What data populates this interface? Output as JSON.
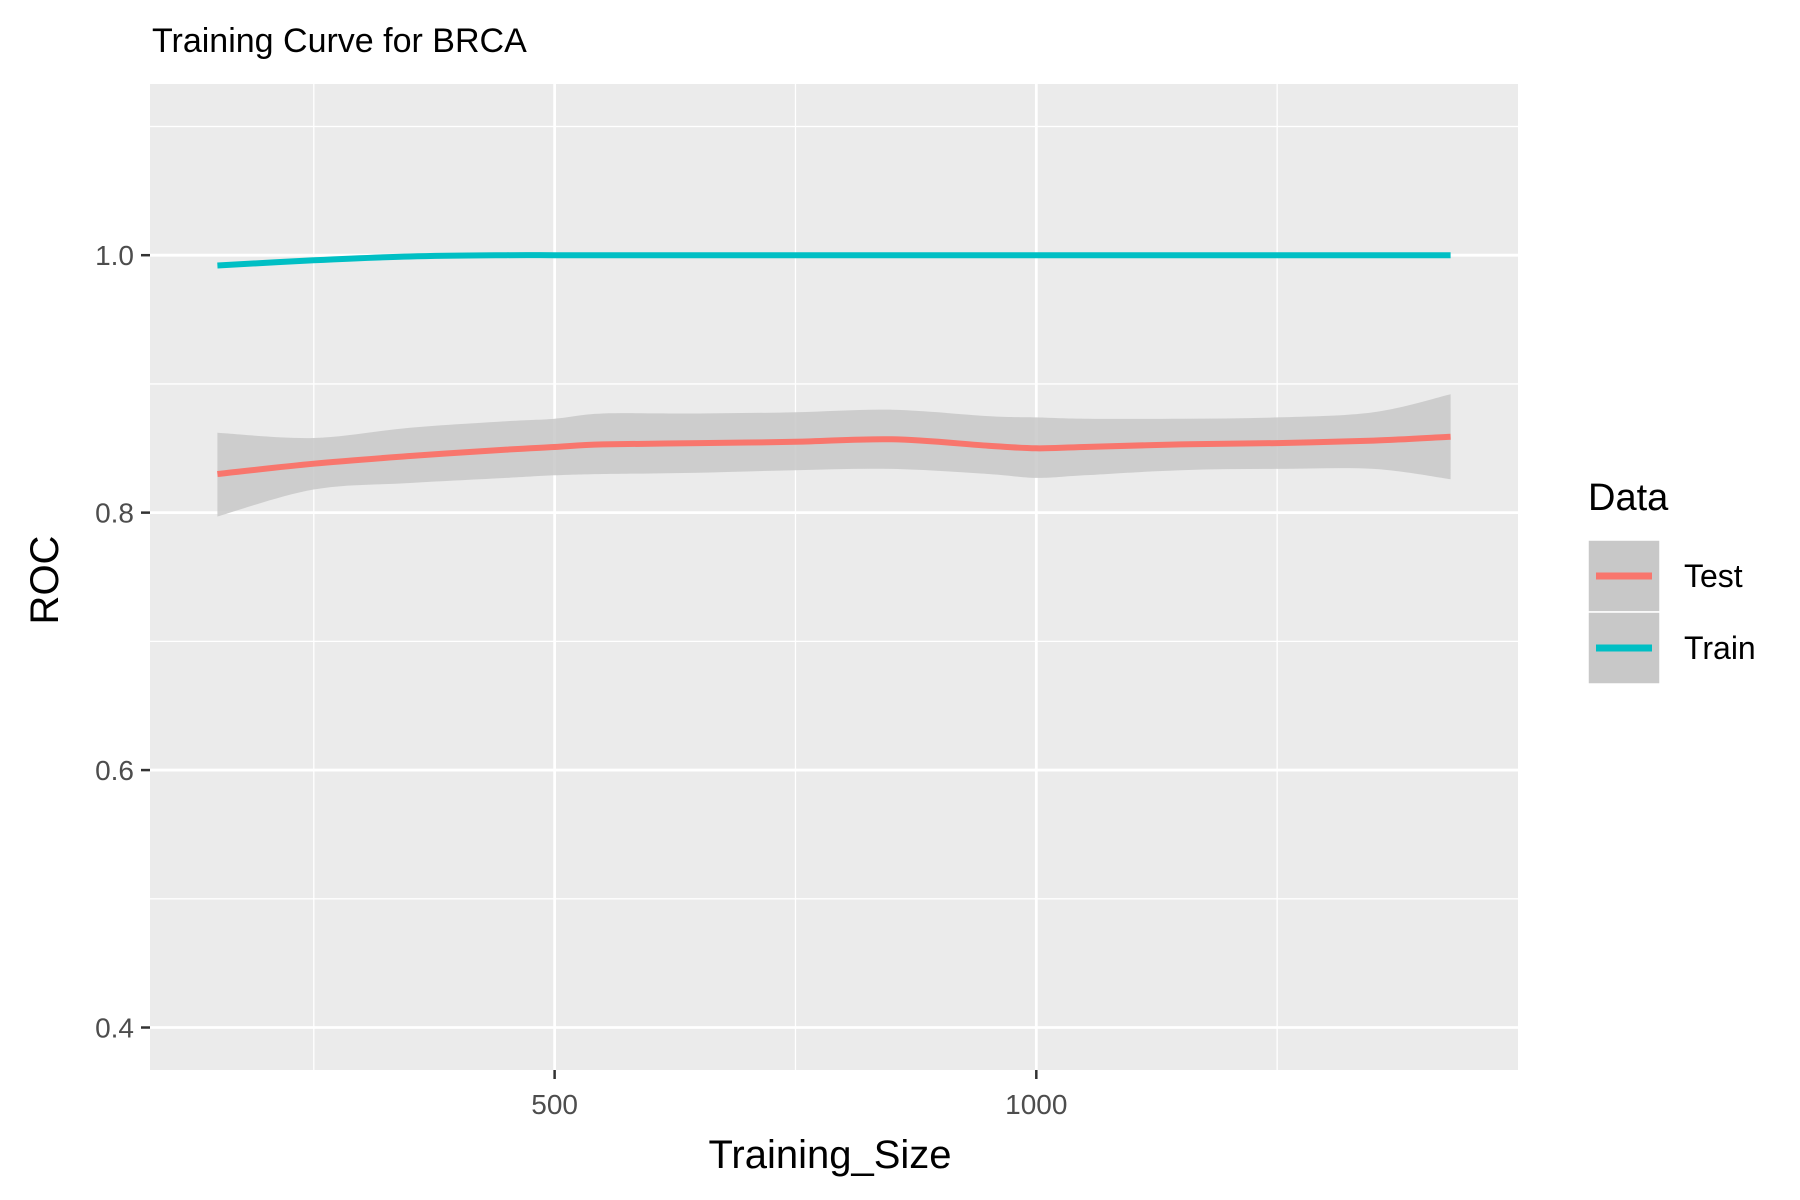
{
  "chart_data": {
    "type": "line",
    "title": "Training Curve for BRCA",
    "xlabel": "Training_Size",
    "ylabel": "ROC",
    "xlim": [
      80,
      1500
    ],
    "ylim": [
      0.367,
      1.133
    ],
    "x_ticks": [
      {
        "value": 500,
        "label": "500"
      },
      {
        "value": 1000,
        "label": "1000"
      }
    ],
    "x_minor_ticks": [
      250,
      750,
      1250
    ],
    "y_ticks": [
      {
        "value": 0.4,
        "label": "0.4"
      },
      {
        "value": 0.6,
        "label": "0.6"
      },
      {
        "value": 0.8,
        "label": "0.8"
      },
      {
        "value": 1.0,
        "label": "1.0"
      }
    ],
    "y_minor_ticks": [
      0.5,
      0.7,
      0.9,
      1.1
    ],
    "grid": true,
    "legend": {
      "title": "Data",
      "placement": "right"
    },
    "series": [
      {
        "name": "Test",
        "color": "#F8766D",
        "x": [
          150,
          250,
          350,
          450,
          500,
          550,
          650,
          750,
          850,
          950,
          1000,
          1050,
          1150,
          1250,
          1350,
          1430
        ],
        "y": [
          0.83,
          0.838,
          0.844,
          0.849,
          0.851,
          0.853,
          0.854,
          0.855,
          0.857,
          0.852,
          0.85,
          0.851,
          0.853,
          0.854,
          0.856,
          0.859
        ],
        "band_upper": [
          0.862,
          0.858,
          0.866,
          0.871,
          0.873,
          0.877,
          0.877,
          0.878,
          0.88,
          0.875,
          0.874,
          0.873,
          0.873,
          0.874,
          0.878,
          0.892
        ],
        "band_lower": [
          0.797,
          0.818,
          0.823,
          0.827,
          0.829,
          0.83,
          0.831,
          0.833,
          0.834,
          0.83,
          0.827,
          0.829,
          0.833,
          0.834,
          0.834,
          0.826
        ]
      },
      {
        "name": "Train",
        "color": "#00BFC4",
        "x": [
          150,
          250,
          350,
          450,
          500,
          550,
          650,
          750,
          850,
          950,
          1000,
          1050,
          1150,
          1250,
          1350,
          1430
        ],
        "y": [
          0.992,
          0.996,
          0.999,
          1.0,
          1.0,
          1.0,
          1.0,
          1.0,
          1.0,
          1.0,
          1.0,
          1.0,
          1.0,
          1.0,
          1.0,
          1.0
        ]
      }
    ],
    "band_color": "#c8c8c8",
    "panel_color": "#ebebeb"
  }
}
